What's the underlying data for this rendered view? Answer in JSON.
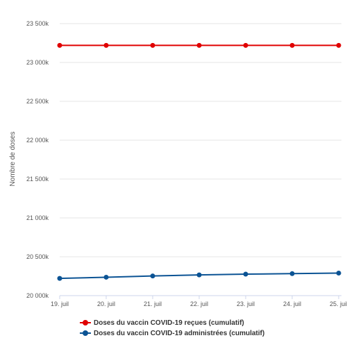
{
  "chart_data": {
    "type": "line",
    "ylabel": "Nombre de doses",
    "x": [
      "19. juil",
      "20. juil",
      "21. juil",
      "22. juil",
      "23. juil",
      "24. juil",
      "25. juil"
    ],
    "ylim": [
      20000,
      23500
    ],
    "yticks": [
      20000,
      20500,
      21000,
      21500,
      22000,
      22500,
      23000,
      23500
    ],
    "ytick_labels": [
      "20 000k",
      "20 500k",
      "21 000k",
      "21 500k",
      "22 000k",
      "22 500k",
      "23 000k",
      "23 500k"
    ],
    "grid": true,
    "legend_position": "bottom",
    "series": [
      {
        "name": "Doses du vaccin COVID-19 reçues (cumulatif)",
        "color": "#e00000",
        "values": [
          23220,
          23220,
          23220,
          23220,
          23220,
          23220,
          23220
        ]
      },
      {
        "name": "Doses du vaccin COVID-19 administrées (cumulatif)",
        "color": "#0b5394",
        "values": [
          20222,
          20237,
          20253,
          20267,
          20277,
          20283,
          20290
        ]
      }
    ]
  }
}
